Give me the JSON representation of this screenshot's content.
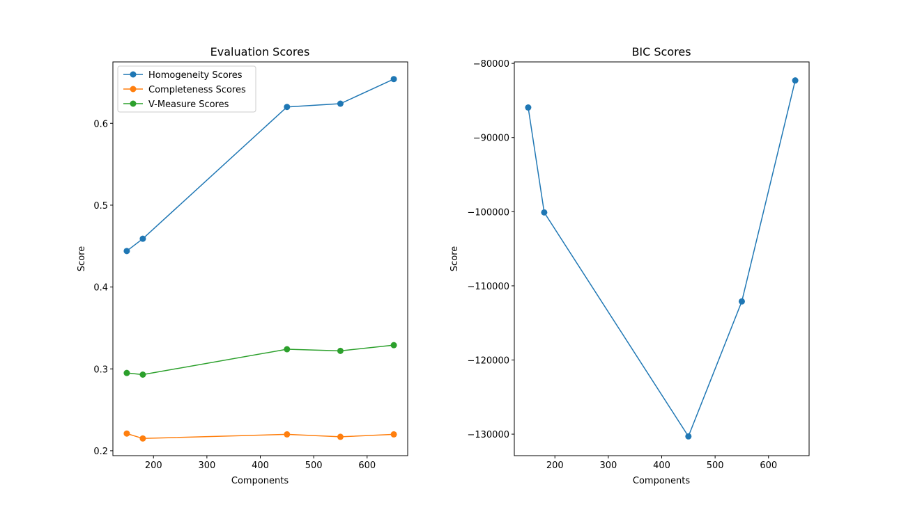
{
  "chart_data": [
    {
      "type": "line",
      "title": "Evaluation Scores",
      "xlabel": "Components",
      "ylabel": "Score",
      "xlim": [
        124,
        676
      ],
      "ylim": [
        0.194,
        0.675
      ],
      "xticks": [
        200,
        300,
        400,
        500,
        600
      ],
      "yticks": [
        0.2,
        0.3,
        0.4,
        0.5,
        0.6
      ],
      "ytick_labels": [
        "0.2",
        "0.3",
        "0.4",
        "0.5",
        "0.6"
      ],
      "legend": "upper-left",
      "grid": false,
      "x": [
        150,
        180,
        450,
        550,
        650
      ],
      "series": [
        {
          "name": "Homogeneity Scores",
          "color": "#1f77b4",
          "values": [
            0.444,
            0.459,
            0.62,
            0.624,
            0.654
          ]
        },
        {
          "name": "Completeness Scores",
          "color": "#ff7f0e",
          "values": [
            0.221,
            0.215,
            0.22,
            0.217,
            0.22
          ]
        },
        {
          "name": "V-Measure Scores",
          "color": "#2ca02c",
          "values": [
            0.295,
            0.293,
            0.324,
            0.322,
            0.329
          ]
        }
      ]
    },
    {
      "type": "line",
      "title": "BIC Scores",
      "xlabel": "Components",
      "ylabel": "Score",
      "xlim": [
        124,
        676
      ],
      "ylim": [
        -132900,
        -79800
      ],
      "xticks": [
        200,
        300,
        400,
        500,
        600
      ],
      "yticks": [
        -130000,
        -120000,
        -110000,
        -100000,
        -90000,
        -80000
      ],
      "ytick_labels": [
        "−130000",
        "−120000",
        "−110000",
        "−100000",
        "−90000",
        "−80000"
      ],
      "legend": "none",
      "grid": false,
      "x": [
        150,
        180,
        450,
        550,
        650
      ],
      "series": [
        {
          "color": "#1f77b4",
          "values": [
            -85950,
            -100100,
            -130300,
            -112100,
            -82300
          ]
        }
      ]
    }
  ]
}
